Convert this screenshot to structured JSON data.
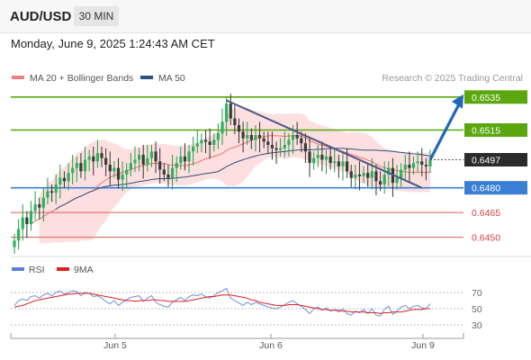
{
  "header": {
    "symbol": "AUD/USD",
    "timeframe": "30 MIN"
  },
  "timestamp": "Monday, June 9, 2025 1:24:43 AM CET",
  "chart_data": [
    {
      "type": "candlestick",
      "legend": [
        {
          "label": "MA 20 + Bollinger Bands",
          "color": "#f08080"
        },
        {
          "label": "MA 50",
          "color": "#2f4f7f"
        }
      ],
      "watermark": "Research © 2025 Trading Central",
      "x_ticks": [
        "Jun 5",
        "Jun 6",
        "Jun 9"
      ],
      "ylim": [
        0.644,
        0.6542
      ],
      "last_price": "0.6497",
      "levels": [
        {
          "label": "0.6535",
          "value": 0.6535,
          "kind": "resistance",
          "color": "#5aa70f"
        },
        {
          "label": "0.6515",
          "value": 0.6515,
          "kind": "resistance",
          "color": "#5aa70f"
        },
        {
          "label": "0.6480",
          "value": 0.648,
          "kind": "pivot",
          "color": "#3a7fd5"
        },
        {
          "label": "0.6465",
          "value": 0.6465,
          "kind": "support",
          "color": "#e05a5a"
        },
        {
          "label": "0.6450",
          "value": 0.645,
          "kind": "support",
          "color": "#e05a5a"
        }
      ],
      "trendline": {
        "from_bar": 51,
        "to_bar": 98,
        "from_price": 0.6533,
        "to_price": 0.648
      },
      "forecast_arrow": {
        "from_bar": 100,
        "from_price": 0.6497,
        "to_price": 0.6535
      },
      "closes": [
        0.6448,
        0.6455,
        0.6462,
        0.6458,
        0.6466,
        0.647,
        0.6468,
        0.6474,
        0.6478,
        0.6477,
        0.6482,
        0.6486,
        0.6484,
        0.6489,
        0.6492,
        0.6495,
        0.649,
        0.6497,
        0.6499,
        0.6496,
        0.6501,
        0.6498,
        0.6494,
        0.649,
        0.6492,
        0.6485,
        0.6488,
        0.6491,
        0.6495,
        0.6497,
        0.65,
        0.6494,
        0.6498,
        0.6502,
        0.6496,
        0.6491,
        0.6488,
        0.6486,
        0.6492,
        0.6495,
        0.6499,
        0.6496,
        0.6502,
        0.6505,
        0.6507,
        0.6509,
        0.6508,
        0.6506,
        0.6509,
        0.6513,
        0.652,
        0.6531,
        0.6522,
        0.6518,
        0.6514,
        0.651,
        0.6512,
        0.6509,
        0.6512,
        0.651,
        0.6508,
        0.6506,
        0.6504,
        0.6503,
        0.6504,
        0.6506,
        0.6509,
        0.6512,
        0.651,
        0.6507,
        0.6502,
        0.6495,
        0.6498,
        0.65,
        0.6497,
        0.6499,
        0.6495,
        0.6496,
        0.6493,
        0.6496,
        0.649,
        0.6486,
        0.6488,
        0.6487,
        0.6489,
        0.6486,
        0.649,
        0.6484,
        0.6482,
        0.6488,
        0.6492,
        0.6483,
        0.6486,
        0.6491,
        0.6494,
        0.6492,
        0.6495,
        0.6496,
        0.6494,
        0.6493,
        0.6497
      ],
      "bollinger": {
        "upper_top": 0.6523,
        "lower_bottom": 0.645
      }
    },
    {
      "type": "line",
      "legend": [
        {
          "label": "RSI",
          "color": "#5b7fd6"
        },
        {
          "label": "9MA",
          "color": "#e02020"
        }
      ],
      "y_ticks": [
        "70",
        "50",
        "30"
      ],
      "ylim": [
        20,
        80
      ],
      "rsi": [
        54,
        60,
        62,
        60,
        65,
        66,
        63,
        67,
        69,
        66,
        70,
        72,
        68,
        70,
        72,
        71,
        66,
        70,
        69,
        65,
        66,
        63,
        59,
        56,
        60,
        54,
        58,
        61,
        64,
        65,
        66,
        59,
        63,
        66,
        58,
        55,
        53,
        52,
        58,
        61,
        64,
        60,
        65,
        67,
        66,
        68,
        65,
        63,
        66,
        70,
        72,
        75,
        63,
        60,
        57,
        54,
        58,
        55,
        58,
        56,
        54,
        52,
        51,
        50,
        52,
        55,
        58,
        60,
        56,
        53,
        49,
        44,
        50,
        52,
        48,
        51,
        47,
        49,
        46,
        50,
        44,
        42,
        47,
        45,
        49,
        44,
        50,
        42,
        41,
        49,
        53,
        43,
        47,
        52,
        54,
        50,
        53,
        54,
        51,
        50,
        56
      ],
      "ma9": [
        52,
        53,
        54,
        56,
        58,
        60,
        61,
        62,
        63,
        64,
        65,
        66,
        67,
        68,
        68,
        69,
        69,
        69,
        69,
        68,
        67,
        66,
        65,
        64,
        63,
        62,
        61,
        60,
        60,
        59,
        60,
        60,
        60,
        61,
        61,
        60,
        60,
        59,
        59,
        59,
        59,
        59,
        60,
        61,
        62,
        63,
        64,
        65,
        65,
        66,
        67,
        67,
        67,
        66,
        65,
        64,
        63,
        61,
        60,
        58,
        57,
        56,
        55,
        54,
        54,
        54,
        55,
        55,
        55,
        54,
        53,
        52,
        51,
        50,
        49,
        49,
        48,
        48,
        48,
        47,
        47,
        46,
        46,
        46,
        46,
        45,
        45,
        45,
        44,
        45,
        45,
        46,
        46,
        46,
        47,
        48,
        49,
        49,
        49,
        50,
        50
      ]
    }
  ]
}
